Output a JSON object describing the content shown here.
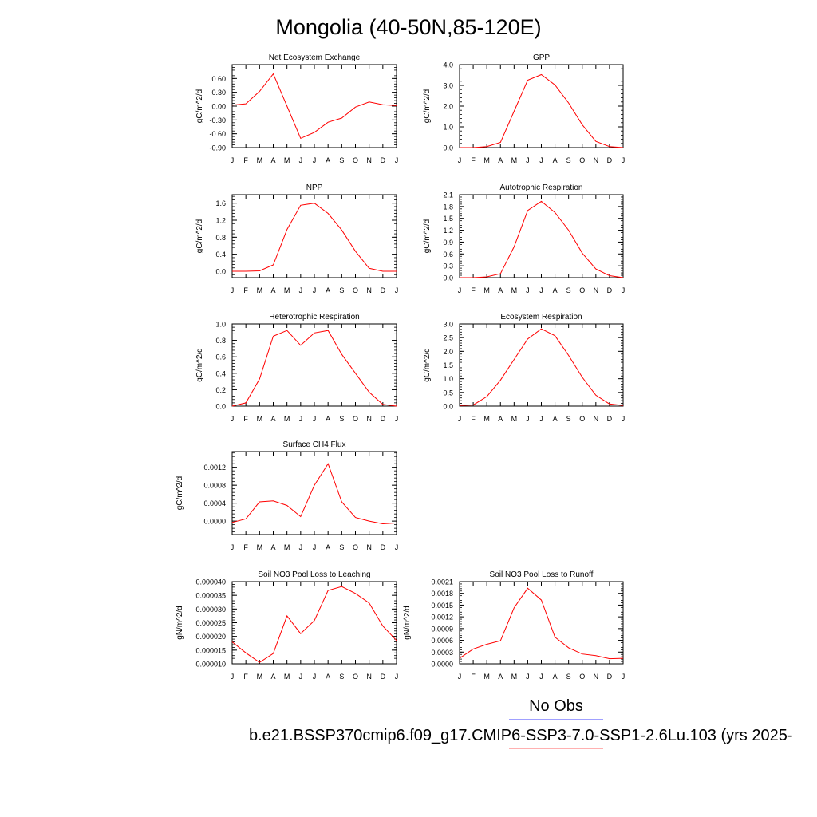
{
  "page": {
    "title": "Mongolia (40-50N,85-120E)",
    "legend_obs": "No Obs",
    "legend_model": "b.e21.BSSP370cmip6.f09_g17.CMIP6-SSP3-7.0-SSP1-2.6Lu.103 (yrs 2025-",
    "colors": {
      "model": "#ff0000",
      "obs": "#4040ff",
      "model_legend": "#ff6060"
    }
  },
  "chart_data": [
    {
      "type": "line",
      "title": "Net Ecosystem Exchange",
      "ylabel": "gC/m^2/d",
      "x": [
        "J",
        "F",
        "M",
        "A",
        "M",
        "J",
        "J",
        "A",
        "S",
        "O",
        "N",
        "D",
        "J"
      ],
      "ylim": [
        -0.9,
        0.9
      ],
      "yticks": [
        -0.9,
        -0.6,
        -0.3,
        0.0,
        0.3,
        0.6
      ],
      "yticklabels": [
        "-0.90",
        "-0.60",
        "-0.30",
        "0.00",
        "0.30",
        "0.60"
      ],
      "series": [
        {
          "values": [
            0.02,
            0.05,
            0.32,
            0.7,
            0.0,
            -0.7,
            -0.57,
            -0.35,
            -0.26,
            -0.02,
            0.09,
            0.03,
            0.01
          ]
        }
      ]
    },
    {
      "type": "line",
      "title": "GPP",
      "ylabel": "gC/m^2/d",
      "x": [
        "J",
        "F",
        "M",
        "A",
        "M",
        "J",
        "J",
        "A",
        "S",
        "O",
        "N",
        "D",
        "J"
      ],
      "ylim": [
        0,
        4
      ],
      "yticks": [
        0,
        1,
        2,
        3,
        4
      ],
      "yticklabels": [
        "0.0",
        "1.0",
        "2.0",
        "3.0",
        "4.0"
      ],
      "series": [
        {
          "values": [
            0.0,
            0.0,
            0.05,
            0.25,
            1.75,
            3.25,
            3.52,
            3.02,
            2.15,
            1.1,
            0.3,
            0.05,
            0.0
          ]
        }
      ]
    },
    {
      "type": "line",
      "title": "NPP",
      "ylabel": "gC/m^2/d",
      "x": [
        "J",
        "F",
        "M",
        "A",
        "M",
        "J",
        "J",
        "A",
        "S",
        "O",
        "N",
        "D",
        "J"
      ],
      "ylim": [
        -0.15,
        1.8
      ],
      "yticks": [
        0.0,
        0.4,
        0.8,
        1.2,
        1.6
      ],
      "yticklabels": [
        "0.0",
        "0.4",
        "0.8",
        "1.2",
        "1.6"
      ],
      "series": [
        {
          "values": [
            0.0,
            0.0,
            0.01,
            0.15,
            0.98,
            1.55,
            1.6,
            1.36,
            0.97,
            0.47,
            0.07,
            0.0,
            0.0
          ]
        }
      ]
    },
    {
      "type": "line",
      "title": "Autotrophic Respiration",
      "ylabel": "gC/m^2/d",
      "x": [
        "J",
        "F",
        "M",
        "A",
        "M",
        "J",
        "J",
        "A",
        "S",
        "O",
        "N",
        "D",
        "J"
      ],
      "ylim": [
        0,
        2.1
      ],
      "yticks": [
        0,
        0.3,
        0.6,
        0.9,
        1.2,
        1.5,
        1.8,
        2.1
      ],
      "yticklabels": [
        "0.0",
        "0.3",
        "0.6",
        "0.9",
        "1.2",
        "1.5",
        "1.8",
        "2.1"
      ],
      "series": [
        {
          "values": [
            0.0,
            0.0,
            0.02,
            0.1,
            0.78,
            1.7,
            1.93,
            1.65,
            1.2,
            0.62,
            0.22,
            0.05,
            0.0
          ]
        }
      ]
    },
    {
      "type": "line",
      "title": "Heterotrophic Respiration",
      "ylabel": "gC/m^2/d",
      "x": [
        "J",
        "F",
        "M",
        "A",
        "M",
        "J",
        "J",
        "A",
        "S",
        "O",
        "N",
        "D",
        "J"
      ],
      "ylim": [
        0,
        1.0
      ],
      "yticks": [
        0,
        0.2,
        0.4,
        0.6,
        0.8,
        1.0
      ],
      "yticklabels": [
        "0.0",
        "0.2",
        "0.4",
        "0.6",
        "0.8",
        "1.0"
      ],
      "series": [
        {
          "values": [
            0.0,
            0.04,
            0.33,
            0.85,
            0.92,
            0.74,
            0.89,
            0.92,
            0.63,
            0.4,
            0.17,
            0.02,
            0.0
          ]
        }
      ]
    },
    {
      "type": "line",
      "title": "Ecosystem Respiration",
      "ylabel": "gC/m^2/d",
      "x": [
        "J",
        "F",
        "M",
        "A",
        "M",
        "J",
        "J",
        "A",
        "S",
        "O",
        "N",
        "D",
        "J"
      ],
      "ylim": [
        0,
        3.0
      ],
      "yticks": [
        0,
        0.5,
        1.0,
        1.5,
        2.0,
        2.5,
        3.0
      ],
      "yticklabels": [
        "0.0",
        "0.5",
        "1.0",
        "1.5",
        "2.0",
        "2.5",
        "3.0"
      ],
      "series": [
        {
          "values": [
            0.02,
            0.04,
            0.35,
            0.95,
            1.7,
            2.45,
            2.82,
            2.57,
            1.85,
            1.05,
            0.4,
            0.08,
            0.02
          ]
        }
      ]
    },
    {
      "type": "line",
      "title": "Surface CH4 Flux",
      "ylabel": "gC/m^2/d",
      "x": [
        "J",
        "F",
        "M",
        "A",
        "M",
        "J",
        "J",
        "A",
        "S",
        "O",
        "N",
        "D",
        "J"
      ],
      "ylim": [
        -0.0003,
        0.00155
      ],
      "yticks": [
        0.0,
        0.0004,
        0.0008,
        0.0012
      ],
      "yticklabels": [
        "0.0000",
        "0.0004",
        "0.0008",
        "0.0012"
      ],
      "series": [
        {
          "values": [
            -3e-05,
            5e-05,
            0.00043,
            0.00045,
            0.00035,
            0.0001,
            0.0008,
            0.00128,
            0.00043,
            8e-05,
            0.0,
            -6e-05,
            -4e-05
          ]
        }
      ]
    },
    {
      "type": "line",
      "title": "Soil NO3 Pool Loss to Leaching",
      "ylabel": "gN/m^2/d",
      "x": [
        "J",
        "F",
        "M",
        "A",
        "M",
        "J",
        "J",
        "A",
        "S",
        "O",
        "N",
        "D",
        "J"
      ],
      "ylim": [
        1e-05,
        4e-05
      ],
      "yticks": [
        1e-05,
        1.5e-05,
        2e-05,
        2.5e-05,
        3e-05,
        3.5e-05,
        4e-05
      ],
      "yticklabels": [
        "0.000010",
        "0.000015",
        "0.000020",
        "0.000025",
        "0.000030",
        "0.000035",
        "0.000040"
      ],
      "series": [
        {
          "values": [
            1.8e-05,
            1.4e-05,
            1.05e-05,
            1.38e-05,
            2.75e-05,
            2.1e-05,
            2.58e-05,
            3.68e-05,
            3.82e-05,
            3.57e-05,
            3.22e-05,
            2.38e-05,
            1.85e-05
          ]
        }
      ]
    },
    {
      "type": "line",
      "title": "Soil NO3 Pool Loss to Runoff",
      "ylabel": "gN/m^2/d",
      "x": [
        "J",
        "F",
        "M",
        "A",
        "M",
        "J",
        "J",
        "A",
        "S",
        "O",
        "N",
        "D",
        "J"
      ],
      "ylim": [
        0,
        0.0021
      ],
      "yticks": [
        0,
        0.0003,
        0.0006,
        0.0009,
        0.0012,
        0.0015,
        0.0018,
        0.0021
      ],
      "yticklabels": [
        "0.0000",
        "0.0003",
        "0.0006",
        "0.0009",
        "0.0012",
        "0.0015",
        "0.0018",
        "0.0021"
      ],
      "series": [
        {
          "values": [
            0.00014,
            0.00038,
            0.0005,
            0.00059,
            0.00143,
            0.00193,
            0.00163,
            0.00068,
            0.00041,
            0.00025,
            0.00021,
            0.00013,
            0.00014
          ]
        }
      ]
    }
  ]
}
